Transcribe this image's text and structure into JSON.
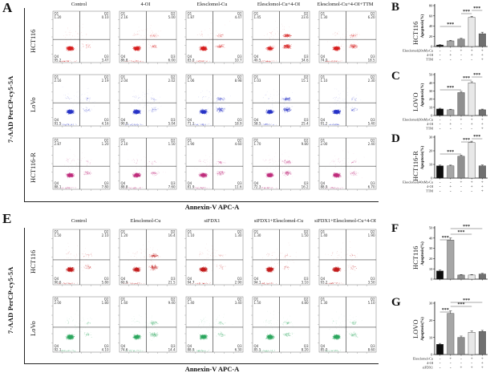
{
  "flow_panels": [
    {
      "letter": "A",
      "y_axis_label": "7-AAD PerCP-cy5-5A",
      "x_axis_label": "Annexin-V APC-A",
      "col_headers": [
        "Control",
        "4-OI",
        "Elesclomol-Cu",
        "Elesclomol-Cu+4-OI",
        "Elesclomol-Cu+4-OI+TTM"
      ],
      "quadrant_names": [
        "Q1",
        "Q2",
        "Q3",
        "Q4"
      ],
      "rows": [
        {
          "label": "HCT116",
          "dot_color": "#d81f1f",
          "plots": [
            {
              "q1": "1.20",
              "q2": "0.10",
              "q3": "3.47",
              "q4": "95.2"
            },
            {
              "q1": "2.16",
              "q2": "5.00",
              "q3": "6.00",
              "q4": "86.8"
            },
            {
              "q1": "1.87",
              "q2": "4.47",
              "q3": "10.7",
              "q4": "83.0"
            },
            {
              "q1": "1.45",
              "q2": "23.6",
              "q3": "34.6",
              "q4": "40.5"
            },
            {
              "q1": "1.30",
              "q2": "6.20",
              "q3": "18.5",
              "q4": "74.0"
            }
          ]
        },
        {
          "label": "LoVo",
          "dot_color": "#2a35c8",
          "plots": [
            {
              "q1": "2.16",
              "q2": "2.19",
              "q3": "4.16",
              "q4": "91.5"
            },
            {
              "q1": "2.04",
              "q2": "2.02",
              "q3": "5.04",
              "q4": "90.9"
            },
            {
              "q1": "1.06",
              "q2": "8.98",
              "q3": "18.9",
              "q4": "71.1"
            },
            {
              "q1": "1.03",
              "q2": "15.1",
              "q3": "25.4",
              "q4": "58.5"
            },
            {
              "q1": "1.10",
              "q2": "2.30",
              "q3": "5.40",
              "q4": "91.2"
            }
          ]
        },
        {
          "label": "HCT116-R",
          "dot_color": "#c02f7e",
          "plots": [
            {
              "q1": "2.87",
              "q2": "1.20",
              "q3": "7.80",
              "q4": "88.1"
            },
            {
              "q1": "2.10",
              "q2": "1.50",
              "q3": "7.60",
              "q4": "88.8"
            },
            {
              "q1": "1.90",
              "q2": "4.60",
              "q3": "11.6",
              "q4": "81.9"
            },
            {
              "q1": "1.70",
              "q2": "9.80",
              "q3": "16.2",
              "q4": "72.3"
            },
            {
              "q1": "2.00",
              "q2": "2.40",
              "q3": "6.70",
              "q4": "88.9"
            }
          ]
        }
      ]
    },
    {
      "letter": "E",
      "y_axis_label": "7-AAD PerCP-cy5-5A",
      "x_axis_label": "Annexin-V APC-A",
      "col_headers": [
        "Control",
        "Elesclomol-Cu",
        "siFDX1",
        "siFDX1+Elesclomol-Cu",
        "siFDX1+Elesclomol-Cu+4-OI"
      ],
      "quadrant_names": [
        "Q1",
        "Q2",
        "Q3",
        "Q4"
      ],
      "rows": [
        {
          "label": "HCT116",
          "dot_color": "#c41e1e",
          "plots": [
            {
              "q1": "1.50",
              "q2": "2.10",
              "q3": "5.80",
              "q4": "90.6"
            },
            {
              "q1": "1.20",
              "q2": "16.4",
              "q3": "21.5",
              "q4": "60.9"
            },
            {
              "q1": "1.10",
              "q2": "1.30",
              "q3": "2.90",
              "q4": "94.7"
            },
            {
              "q1": "1.30",
              "q2": "1.50",
              "q3": "3.10",
              "q4": "94.1"
            },
            {
              "q1": "1.40",
              "q2": "1.90",
              "q3": "3.50",
              "q4": "93.2"
            }
          ]
        },
        {
          "label": "LoVo",
          "dot_color": "#2ea860",
          "plots": [
            {
              "q1": "2.00",
              "q2": "1.80",
              "q3": "4.10",
              "q4": "92.1"
            },
            {
              "q1": "1.60",
              "q2": "9.40",
              "q3": "14.4",
              "q4": "74.6"
            },
            {
              "q1": "1.40",
              "q2": "3.40",
              "q3": "6.30",
              "q4": "88.9"
            },
            {
              "q1": "1.50",
              "q2": "4.80",
              "q3": "8.20",
              "q4": "85.5"
            },
            {
              "q1": "1.30",
              "q2": "5.10",
              "q3": "8.60",
              "q4": "85.0"
            }
          ]
        }
      ]
    }
  ],
  "chart_data": [
    {
      "type": "bar",
      "panel": "B",
      "cell_line": "HCT116",
      "ylabel": "Apoptosis(%)",
      "ylim": [
        0,
        80
      ],
      "yticks": [
        0,
        20,
        40,
        60,
        80
      ],
      "categories": [
        "Control",
        "4-OI",
        "Elesclomol-Cu",
        "Elesclomol-Cu+4-OI",
        "Elesclomol-Cu+4-OI+TTM"
      ],
      "values": [
        3,
        11,
        14.5,
        57,
        25
      ],
      "errors": [
        0.8,
        1.2,
        1.5,
        2,
        3
      ],
      "bar_colors": [
        "#0d0d0d",
        "#a6a6a6",
        "#8f8f8f",
        "#e8e8e8",
        "#707070"
      ],
      "significance": [
        {
          "from": 0,
          "to": 2,
          "label": "***"
        },
        {
          "from": 2,
          "to": 3,
          "label": "***"
        },
        {
          "from": 3,
          "to": 4,
          "label": "***"
        }
      ],
      "treatments": [
        {
          "label": "Elesclomol(20nM)-Cu",
          "marks": [
            "-",
            "-",
            "+",
            "+",
            "+"
          ]
        },
        {
          "label": "4-OI",
          "marks": [
            "-",
            "+",
            "-",
            "+",
            "+"
          ]
        },
        {
          "label": "TTM",
          "marks": [
            "-",
            "-",
            "-",
            "-",
            "+"
          ]
        }
      ]
    },
    {
      "type": "bar",
      "panel": "C",
      "cell_line": "LOVO",
      "ylabel": "Apoptosis(%)",
      "ylim": [
        0,
        50
      ],
      "yticks": [
        0,
        10,
        20,
        30,
        40,
        50
      ],
      "categories": [
        "Control",
        "4-OI",
        "Elesclomol-Cu",
        "Elesclomol-Cu+4-OI",
        "Elesclomol-Cu+4-OI+TTM"
      ],
      "values": [
        8,
        7,
        28,
        40,
        7
      ],
      "errors": [
        0.8,
        0.7,
        1.5,
        1.2,
        0.8
      ],
      "bar_colors": [
        "#0d0d0d",
        "#a6a6a6",
        "#8f8f8f",
        "#e8e8e8",
        "#707070"
      ],
      "significance": [
        {
          "from": 0,
          "to": 2,
          "label": "***"
        },
        {
          "from": 2,
          "to": 3,
          "label": "***"
        },
        {
          "from": 3,
          "to": 4,
          "label": "***"
        }
      ],
      "treatments": [
        {
          "label": "Elesclomol(30nM)-Cu",
          "marks": [
            "-",
            "-",
            "+",
            "+",
            "+"
          ]
        },
        {
          "label": "4-OI",
          "marks": [
            "-",
            "+",
            "-",
            "+",
            "+"
          ]
        },
        {
          "label": "TTM",
          "marks": [
            "-",
            "-",
            "-",
            "-",
            "+"
          ]
        }
      ]
    },
    {
      "type": "bar",
      "panel": "D",
      "cell_line": "HCT116-R",
      "ylabel": "Apoptosis(%)",
      "ylim": [
        0,
        30
      ],
      "yticks": [
        0,
        10,
        20,
        30
      ],
      "categories": [
        "Control",
        "4-OI",
        "Elesclomol-Cu",
        "Elesclomol-Cu+4-OI",
        "Elesclomol-Cu+4-OI+TTM"
      ],
      "values": [
        9,
        9,
        16,
        26,
        9
      ],
      "errors": [
        0.5,
        0.5,
        0.8,
        1,
        0.6
      ],
      "bar_colors": [
        "#0d0d0d",
        "#a6a6a6",
        "#8f8f8f",
        "#e8e8e8",
        "#707070"
      ],
      "significance": [
        {
          "from": 0,
          "to": 2,
          "label": "***"
        },
        {
          "from": 2,
          "to": 3,
          "label": "***"
        },
        {
          "from": 3,
          "to": 4,
          "label": "***"
        }
      ],
      "treatments": [
        {
          "label": "Elesclomol(40nM)-Cu",
          "marks": [
            "-",
            "-",
            "+",
            "+",
            "+"
          ]
        },
        {
          "label": "4-OI",
          "marks": [
            "-",
            "+",
            "-",
            "+",
            "+"
          ]
        },
        {
          "label": "TTM",
          "marks": [
            "-",
            "-",
            "-",
            "-",
            "+"
          ]
        }
      ]
    },
    {
      "type": "bar",
      "panel": "F",
      "cell_line": "HCT116",
      "ylabel": "Apoptosis(%)",
      "ylim": [
        0,
        50
      ],
      "yticks": [
        0,
        10,
        20,
        30,
        40,
        50
      ],
      "categories": [
        "Control",
        "Elesclomol-Cu",
        "siFDX1",
        "siFDX1+Elesclomol-Cu",
        "siFDX1+Elesclomol-Cu+4-OI"
      ],
      "values": [
        8,
        38,
        4,
        4,
        5
      ],
      "errors": [
        0.8,
        2,
        0.5,
        0.5,
        0.6
      ],
      "bar_colors": [
        "#0d0d0d",
        "#a6a6a6",
        "#8f8f8f",
        "#e8e8e8",
        "#707070"
      ],
      "significance": [
        {
          "from": 0,
          "to": 1,
          "label": "***"
        },
        {
          "from": 1,
          "to": 3,
          "label": "***"
        },
        {
          "from": 1,
          "to": 4,
          "label": "***"
        }
      ],
      "treatments": []
    },
    {
      "type": "bar",
      "panel": "G",
      "cell_line": "LOVO",
      "ylabel": "Apoptosis(%)",
      "ylim": [
        0,
        30
      ],
      "yticks": [
        0,
        10,
        20,
        30
      ],
      "categories": [
        "Control",
        "Elesclomol-Cu",
        "siFDX1",
        "siFDX1+Elesclomol-Cu",
        "siFDX1+Elesclomol-Cu+4-OI"
      ],
      "values": [
        6,
        24,
        10,
        13,
        13.5
      ],
      "errors": [
        0.5,
        1.5,
        0.8,
        0.7,
        0.6
      ],
      "bar_colors": [
        "#0d0d0d",
        "#a6a6a6",
        "#8f8f8f",
        "#e8e8e8",
        "#707070"
      ],
      "significance": [
        {
          "from": 0,
          "to": 1,
          "label": "***"
        },
        {
          "from": 1,
          "to": 3,
          "label": "***"
        },
        {
          "from": 1,
          "to": 4,
          "label": "***"
        }
      ],
      "treatments": [
        {
          "label": "Elesclomol-Cu",
          "marks": [
            "-",
            "+",
            "-",
            "+",
            "+"
          ]
        },
        {
          "label": "4-OI",
          "marks": [
            "-",
            "-",
            "-",
            "-",
            "+"
          ]
        },
        {
          "label": "siFDX1",
          "marks": [
            "-",
            "-",
            "+",
            "+",
            "+"
          ]
        }
      ]
    }
  ]
}
